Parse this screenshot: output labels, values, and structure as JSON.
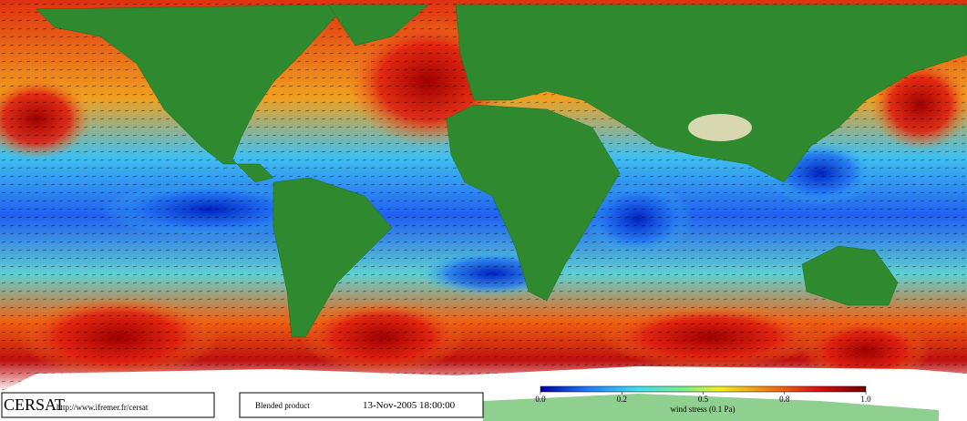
{
  "logo": "CERSAT",
  "url": "http://www.ifremer.fr/cersat",
  "product": "Blended product",
  "date": "13-Nov-2005 18:00:00",
  "colorbar": {
    "label": "wind stress (0.1 Pa)",
    "ticks": [
      {
        "value": 0,
        "label": "0.0"
      },
      {
        "value": 0.2,
        "label": "0.2"
      },
      {
        "value": 0.5,
        "label": "0.5"
      },
      {
        "value": 0.8,
        "label": "0.8"
      },
      {
        "value": 1,
        "label": "1.0"
      }
    ]
  }
}
